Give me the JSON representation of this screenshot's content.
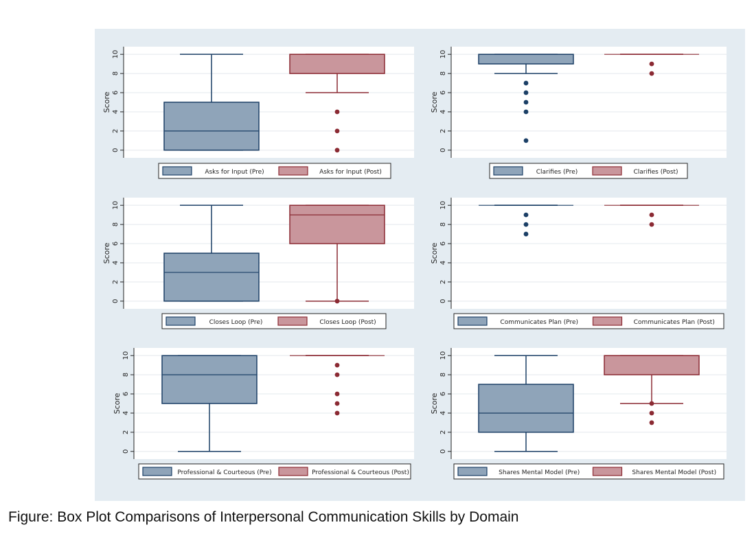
{
  "caption": "Figure: Box Plot Comparisons of Interpersonal Communication Skills by Domain",
  "colors": {
    "background": "#e4ecf2",
    "plot_bg": "#ffffff",
    "pre_fill": "#8fa4b9",
    "pre_line": "#1b3f66",
    "post_fill": "#c9969c",
    "post_line": "#8b2a33"
  },
  "chart_data": [
    {
      "type": "box",
      "ylabel": "Score",
      "yticks": [
        0,
        2,
        4,
        6,
        8,
        10
      ],
      "ylim": [
        -0.8,
        10.8
      ],
      "grid": true,
      "legend_position": "bottom",
      "series": [
        {
          "name": "Asks for Input (Pre)",
          "group": "pre",
          "whisker_low": 0,
          "q1": 0,
          "median": 2,
          "q3": 5,
          "whisker_high": 10,
          "outliers": []
        },
        {
          "name": "Asks for Input (Post)",
          "group": "post",
          "whisker_low": 6,
          "q1": 8,
          "median": 10,
          "q3": 10,
          "whisker_high": 10,
          "outliers": [
            4,
            2,
            0
          ]
        }
      ]
    },
    {
      "type": "box",
      "ylabel": "Score",
      "yticks": [
        0,
        2,
        4,
        6,
        8,
        10
      ],
      "ylim": [
        -0.8,
        10.8
      ],
      "grid": true,
      "legend_position": "bottom",
      "series": [
        {
          "name": "Clarifies (Pre)",
          "group": "pre",
          "whisker_low": 8,
          "q1": 9,
          "median": 10,
          "q3": 10,
          "whisker_high": 10,
          "outliers": [
            7,
            6,
            5,
            4,
            1
          ]
        },
        {
          "name": "Clarifies (Post)",
          "group": "post",
          "whisker_low": 10,
          "q1": 10,
          "median": 10,
          "q3": 10,
          "whisker_high": 10,
          "outliers": [
            9,
            8
          ]
        }
      ]
    },
    {
      "type": "box",
      "ylabel": "Score",
      "yticks": [
        0,
        2,
        4,
        6,
        8,
        10
      ],
      "ylim": [
        -0.8,
        10.8
      ],
      "grid": true,
      "legend_position": "bottom",
      "series": [
        {
          "name": "Closes Loop (Pre)",
          "group": "pre",
          "whisker_low": 0,
          "q1": 0,
          "median": 3,
          "q3": 5,
          "whisker_high": 10,
          "outliers": []
        },
        {
          "name": "Closes Loop (Post)",
          "group": "post",
          "whisker_low": 0,
          "q1": 6,
          "median": 9,
          "q3": 10,
          "whisker_high": 10,
          "outliers": [
            0
          ]
        }
      ]
    },
    {
      "type": "box",
      "ylabel": "Score",
      "yticks": [
        0,
        2,
        4,
        6,
        8,
        10
      ],
      "ylim": [
        -0.8,
        10.8
      ],
      "grid": true,
      "legend_position": "bottom",
      "series": [
        {
          "name": "Communicates Plan (Pre)",
          "group": "pre",
          "whisker_low": 10,
          "q1": 10,
          "median": 10,
          "q3": 10,
          "whisker_high": 10,
          "outliers": [
            9,
            8,
            7
          ]
        },
        {
          "name": "Communicates Plan (Post)",
          "group": "post",
          "whisker_low": 10,
          "q1": 10,
          "median": 10,
          "q3": 10,
          "whisker_high": 10,
          "outliers": [
            9,
            8
          ]
        }
      ]
    },
    {
      "type": "box",
      "ylabel": "Score",
      "yticks": [
        0,
        2,
        4,
        6,
        8,
        10
      ],
      "ylim": [
        -0.8,
        10.8
      ],
      "grid": true,
      "legend_position": "bottom",
      "series": [
        {
          "name": "Professional & Courteous (Pre)",
          "group": "pre",
          "whisker_low": 0,
          "q1": 5,
          "median": 8,
          "q3": 10,
          "whisker_high": 10,
          "outliers": []
        },
        {
          "name": "Professional & Courteous (Post)",
          "group": "post",
          "whisker_low": 10,
          "q1": 10,
          "median": 10,
          "q3": 10,
          "whisker_high": 10,
          "outliers": [
            9,
            8,
            6,
            5,
            4
          ]
        }
      ]
    },
    {
      "type": "box",
      "ylabel": "Score",
      "yticks": [
        0,
        2,
        4,
        6,
        8,
        10
      ],
      "ylim": [
        -0.8,
        10.8
      ],
      "grid": true,
      "legend_position": "bottom",
      "series": [
        {
          "name": "Shares Mental Model (Pre)",
          "group": "pre",
          "whisker_low": 0,
          "q1": 2,
          "median": 4,
          "q3": 7,
          "whisker_high": 10,
          "outliers": []
        },
        {
          "name": "Shares Mental Model (Post)",
          "group": "post",
          "whisker_low": 5,
          "q1": 8,
          "median": 10,
          "q3": 10,
          "whisker_high": 10,
          "outliers": [
            5,
            4,
            3
          ]
        }
      ]
    }
  ]
}
